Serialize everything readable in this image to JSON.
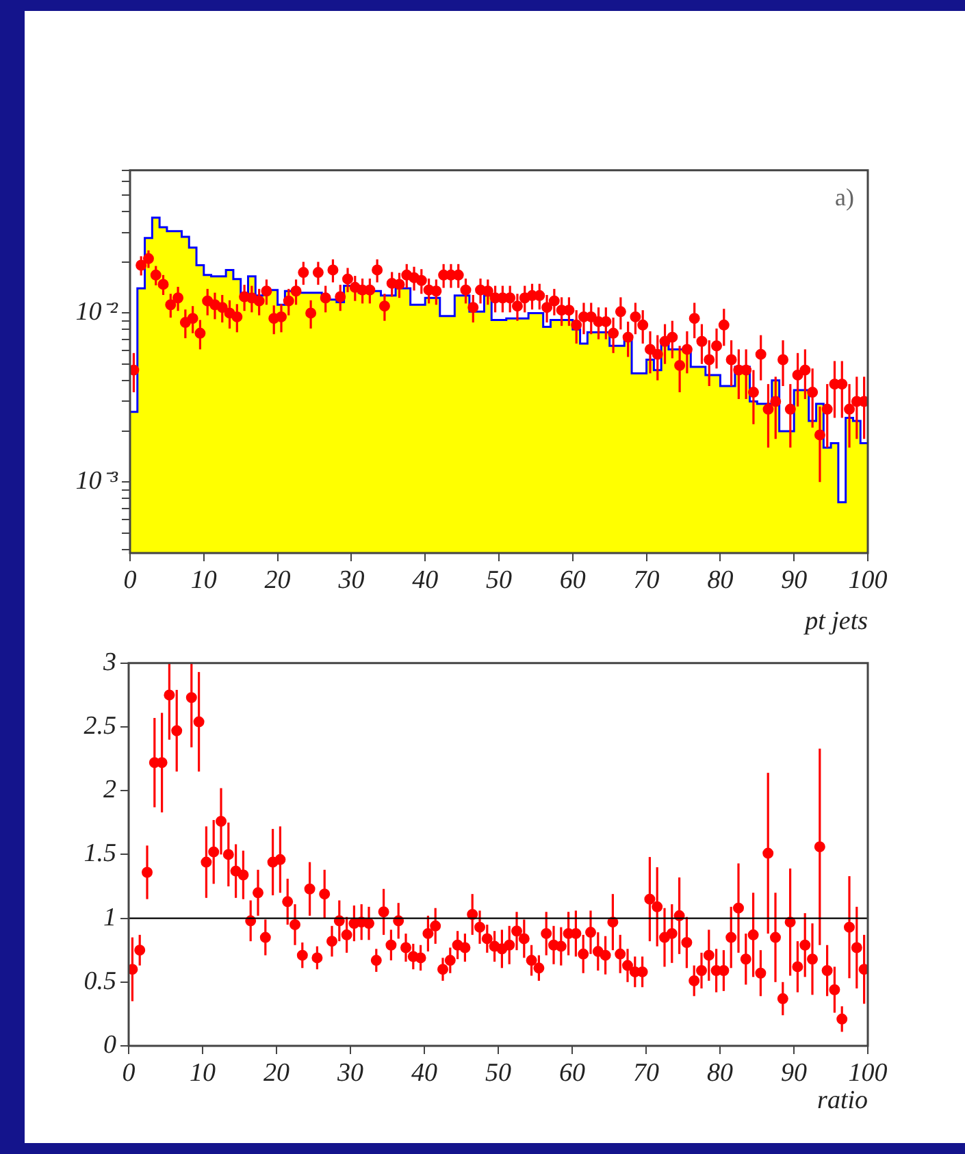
{
  "chart_data": [
    {
      "type": "histogram",
      "xlabel": "pt jets",
      "annotations": [
        "a)"
      ],
      "log": true,
      "xlim": [
        0,
        100
      ],
      "xticks": [
        0,
        10,
        20,
        30,
        40,
        50,
        60,
        70,
        80,
        90,
        100
      ],
      "ylim": [
        0.00038,
        0.07
      ],
      "yticks": [
        {
          "value": 0.0004,
          "label": null
        },
        {
          "value": 0.0005,
          "label": null
        },
        {
          "value": 0.0006,
          "label": null
        },
        {
          "value": 0.0007,
          "label": null
        },
        {
          "value": 0.0008,
          "label": null
        },
        {
          "value": 0.0009,
          "label": null
        },
        {
          "value": 0.001,
          "label": "10⁻³"
        },
        {
          "value": 0.002,
          "label": null
        },
        {
          "value": 0.003,
          "label": null
        },
        {
          "value": 0.004,
          "label": null
        },
        {
          "value": 0.005,
          "label": null
        },
        {
          "value": 0.006,
          "label": null
        },
        {
          "value": 0.007,
          "label": null
        },
        {
          "value": 0.008,
          "label": null
        },
        {
          "value": 0.009,
          "label": null
        },
        {
          "value": 0.01,
          "label": "10⁻²"
        },
        {
          "value": 0.02,
          "label": null
        },
        {
          "value": 0.03,
          "label": null
        },
        {
          "value": 0.04,
          "label": null
        },
        {
          "value": 0.05,
          "label": null
        },
        {
          "value": 0.06,
          "label": null
        },
        {
          "value": 0.07,
          "label": null
        }
      ],
      "series": [
        {
          "type": "histogram",
          "color": "#ffff00",
          "bins": [
            0,
            1,
            2,
            3,
            4,
            5,
            6,
            7,
            8,
            9,
            10,
            11,
            12,
            13,
            14,
            15,
            16,
            17,
            18,
            19,
            20,
            21,
            22,
            23,
            24,
            25,
            26,
            27,
            28,
            29,
            30,
            31,
            32,
            33,
            34,
            35,
            36,
            37,
            38,
            39,
            40,
            41,
            42,
            43,
            44,
            45,
            46,
            47,
            48,
            49,
            50,
            51,
            52,
            53,
            54,
            55,
            56,
            57,
            58,
            59,
            60,
            61,
            62,
            63,
            64,
            65,
            66,
            67,
            68,
            69,
            70,
            71,
            72,
            73,
            74,
            75,
            76,
            77,
            78,
            79,
            80,
            81,
            82,
            83,
            84,
            85,
            86,
            87,
            88,
            89,
            90,
            91,
            92,
            93,
            94,
            95,
            96,
            97,
            98,
            99,
            100
          ],
          "values": [
            0.0026,
            0.014,
            0.0278,
            0.0367,
            0.0322,
            0.0305,
            0.0305,
            0.0283,
            0.0244,
            0.0192,
            0.0168,
            0.0165,
            0.0165,
            0.018,
            0.0159,
            0.0127,
            0.0165,
            0.0127,
            0.0137,
            0.0137,
            0.0112,
            0.0135,
            0.0135,
            0.0132,
            0.0132,
            0.0132,
            0.012,
            0.012,
            0.0116,
            0.0145,
            0.0145,
            0.0132,
            0.0135,
            0.0135,
            0.0127,
            0.0127,
            0.014,
            0.014,
            0.0112,
            0.0112,
            0.0123,
            0.0123,
            0.0096,
            0.0096,
            0.0127,
            0.0127,
            0.0102,
            0.0102,
            0.0127,
            0.0091,
            0.0091,
            0.0093,
            0.0093,
            0.0093,
            0.01,
            0.01,
            0.0083,
            0.0091,
            0.0091,
            0.0091,
            0.008,
            0.0066,
            0.0077,
            0.0077,
            0.0077,
            0.0064,
            0.0064,
            0.0073,
            0.0044,
            0.0044,
            0.0053,
            0.0046,
            0.0069,
            0.0061,
            0.0061,
            0.0061,
            0.0048,
            0.0048,
            0.0043,
            0.0043,
            0.0037,
            0.0037,
            0.0048,
            0.0048,
            0.003,
            0.0029,
            0.0029,
            0.004,
            0.002,
            0.002,
            0.0035,
            0.0035,
            0.0023,
            0.0029,
            0.0016,
            0.0017,
            0.00076,
            0.0024,
            0.0023,
            0.0017
          ]
        },
        {
          "type": "step",
          "color": "#0000ff",
          "marker": "none",
          "x": [
            0,
            1,
            2,
            3,
            4,
            5,
            6,
            7,
            8,
            9,
            10,
            11,
            12,
            13,
            14,
            15,
            16,
            17,
            18,
            19,
            20,
            21,
            22,
            23,
            24,
            25,
            26,
            27,
            28,
            29,
            30,
            31,
            32,
            33,
            34,
            35,
            36,
            37,
            38,
            39,
            40,
            41,
            42,
            43,
            44,
            45,
            46,
            47,
            48,
            49,
            50,
            51,
            52,
            53,
            54,
            55,
            56,
            57,
            58,
            59,
            60,
            61,
            62,
            63,
            64,
            65,
            66,
            67,
            68,
            69,
            70,
            71,
            72,
            73,
            74,
            75,
            76,
            77,
            78,
            79,
            80,
            81,
            82,
            83,
            84,
            85,
            86,
            87,
            88,
            89,
            90,
            91,
            92,
            93,
            94,
            95,
            96,
            97,
            98,
            99,
            100
          ],
          "values": [
            0.0026,
            0.014,
            0.0278,
            0.0367,
            0.0322,
            0.0305,
            0.0305,
            0.0283,
            0.0244,
            0.0192,
            0.0168,
            0.0165,
            0.0165,
            0.018,
            0.0159,
            0.0127,
            0.0165,
            0.0127,
            0.0137,
            0.0137,
            0.0112,
            0.0135,
            0.0135,
            0.0132,
            0.0132,
            0.0132,
            0.012,
            0.012,
            0.0116,
            0.0145,
            0.0145,
            0.0132,
            0.0135,
            0.0135,
            0.0127,
            0.0127,
            0.014,
            0.014,
            0.0112,
            0.0112,
            0.0123,
            0.0123,
            0.0096,
            0.0096,
            0.0127,
            0.0127,
            0.0102,
            0.0102,
            0.0127,
            0.0091,
            0.0091,
            0.0093,
            0.0093,
            0.0093,
            0.01,
            0.01,
            0.0083,
            0.0091,
            0.0091,
            0.0091,
            0.008,
            0.0066,
            0.0077,
            0.0077,
            0.0077,
            0.0064,
            0.0064,
            0.0073,
            0.0044,
            0.0044,
            0.0053,
            0.0046,
            0.0069,
            0.0061,
            0.0061,
            0.0061,
            0.0048,
            0.0048,
            0.0043,
            0.0043,
            0.0037,
            0.0037,
            0.0048,
            0.0048,
            0.003,
            0.0029,
            0.0029,
            0.004,
            0.002,
            0.002,
            0.0035,
            0.0035,
            0.0023,
            0.0029,
            0.0016,
            0.0017,
            0.00076,
            0.0024,
            0.0023,
            0.0017,
            0.0017
          ]
        },
        {
          "type": "scatter",
          "color": "#ff0000",
          "marker": "circle",
          "x": [
            0.5,
            1.5,
            2.5,
            3.5,
            4.5,
            5.5,
            6.5,
            7.5,
            8.5,
            9.5,
            10.5,
            11.5,
            12.5,
            13.5,
            14.5,
            15.5,
            16.5,
            17.5,
            18.5,
            19.5,
            20.5,
            21.5,
            22.5,
            23.5,
            24.5,
            25.5,
            26.5,
            27.5,
            28.5,
            29.5,
            30.5,
            31.5,
            32.5,
            33.5,
            34.5,
            35.5,
            36.5,
            37.5,
            38.5,
            39.5,
            40.5,
            41.5,
            42.5,
            43.5,
            44.5,
            45.5,
            46.5,
            47.5,
            48.5,
            49.5,
            50.5,
            51.5,
            52.5,
            53.5,
            54.5,
            55.5,
            56.5,
            57.5,
            58.5,
            59.5,
            60.5,
            61.5,
            62.5,
            63.5,
            64.5,
            65.5,
            66.5,
            67.5,
            68.5,
            69.5,
            70.5,
            71.5,
            72.5,
            73.5,
            74.5,
            75.5,
            76.5,
            77.5,
            78.5,
            79.5,
            80.5,
            81.5,
            82.5,
            83.5,
            84.5,
            85.5,
            86.5,
            87.5,
            88.5,
            89.5,
            90.5,
            91.5,
            92.5,
            93.5,
            94.5,
            95.5,
            96.5,
            97.5,
            98.5,
            99.5
          ],
          "values": [
            0.0046,
            0.0192,
            0.021,
            0.0168,
            0.0148,
            0.0112,
            0.0123,
            0.0088,
            0.0093,
            0.0076,
            0.0118,
            0.0112,
            0.0108,
            0.01,
            0.0095,
            0.0125,
            0.0123,
            0.0118,
            0.0135,
            0.0093,
            0.0095,
            0.0118,
            0.0135,
            0.0174,
            0.01,
            0.0174,
            0.0123,
            0.018,
            0.0125,
            0.0159,
            0.0142,
            0.0137,
            0.0137,
            0.018,
            0.011,
            0.015,
            0.0148,
            0.0168,
            0.0162,
            0.0156,
            0.0137,
            0.0135,
            0.0168,
            0.0168,
            0.0168,
            0.0137,
            0.0108,
            0.0137,
            0.0135,
            0.0123,
            0.0123,
            0.0123,
            0.011,
            0.0123,
            0.0127,
            0.0127,
            0.0108,
            0.0118,
            0.0104,
            0.0104,
            0.0085,
            0.0095,
            0.0095,
            0.0089,
            0.0089,
            0.0076,
            0.0102,
            0.0072,
            0.0095,
            0.0085,
            0.0061,
            0.0057,
            0.0068,
            0.0072,
            0.0049,
            0.0061,
            0.0093,
            0.0068,
            0.0053,
            0.0064,
            0.0085,
            0.0053,
            0.0046,
            0.0046,
            0.0034,
            0.0057,
            0.0027,
            0.003,
            0.0053,
            0.0027,
            0.0043,
            0.0046,
            0.0034,
            0.0019,
            0.0027,
            0.0038,
            0.0038,
            0.0027,
            0.003,
            0.003
          ],
          "errors": [
            0.0012,
            0.0025,
            0.0025,
            0.0022,
            0.002,
            0.0018,
            0.002,
            0.0017,
            0.0017,
            0.0015,
            0.0021,
            0.002,
            0.002,
            0.0019,
            0.0018,
            0.0022,
            0.0022,
            0.0021,
            0.0023,
            0.0018,
            0.0018,
            0.0021,
            0.0023,
            0.0027,
            0.0019,
            0.0027,
            0.0022,
            0.0028,
            0.0022,
            0.0026,
            0.0024,
            0.0023,
            0.0023,
            0.0028,
            0.002,
            0.0025,
            0.0025,
            0.0027,
            0.0026,
            0.0026,
            0.0023,
            0.0023,
            0.0027,
            0.0027,
            0.0027,
            0.0023,
            0.002,
            0.0023,
            0.0023,
            0.0022,
            0.0022,
            0.0022,
            0.002,
            0.0022,
            0.0022,
            0.0022,
            0.002,
            0.0021,
            0.002,
            0.002,
            0.0019,
            0.002,
            0.002,
            0.0019,
            0.0019,
            0.0018,
            0.0022,
            0.0017,
            0.002,
            0.0019,
            0.0017,
            0.0017,
            0.0018,
            0.0018,
            0.0015,
            0.0017,
            0.0022,
            0.0018,
            0.0016,
            0.0017,
            0.0021,
            0.0016,
            0.0015,
            0.0015,
            0.0012,
            0.0017,
            0.0011,
            0.0012,
            0.0016,
            0.0011,
            0.0015,
            0.0015,
            0.0013,
            0.0009,
            0.0011,
            0.0014,
            0.0014,
            0.0011,
            0.0012,
            0.0012
          ]
        }
      ]
    },
    {
      "type": "scatter",
      "xlabel": "ratio",
      "marker": "circle",
      "color": "#ff0000",
      "xlim": [
        0,
        100
      ],
      "xticks": [
        0,
        10,
        20,
        30,
        40,
        50,
        60,
        70,
        80,
        90,
        100
      ],
      "ylim": [
        0,
        3
      ],
      "yticks": [
        0,
        0.5,
        1,
        1.5,
        2,
        2.5,
        3
      ],
      "ref_lines": [
        {
          "axis": "y",
          "value": 1,
          "color": "#000000"
        }
      ],
      "x": [
        0.5,
        1.5,
        2.5,
        3.5,
        4.5,
        5.5,
        6.5,
        7.5,
        8.5,
        9.5,
        10.5,
        11.5,
        12.5,
        13.5,
        14.5,
        15.5,
        16.5,
        17.5,
        18.5,
        19.5,
        20.5,
        21.5,
        22.5,
        23.5,
        24.5,
        25.5,
        26.5,
        27.5,
        28.5,
        29.5,
        30.5,
        31.5,
        32.5,
        33.5,
        34.5,
        35.5,
        36.5,
        37.5,
        38.5,
        39.5,
        40.5,
        41.5,
        42.5,
        43.5,
        44.5,
        45.5,
        46.5,
        47.5,
        48.5,
        49.5,
        50.5,
        51.5,
        52.5,
        53.5,
        54.5,
        55.5,
        56.5,
        57.5,
        58.5,
        59.5,
        60.5,
        61.5,
        62.5,
        63.5,
        64.5,
        65.5,
        66.5,
        67.5,
        68.5,
        69.5,
        70.5,
        71.5,
        72.5,
        73.5,
        74.5,
        75.5,
        76.5,
        77.5,
        78.5,
        79.5,
        80.5,
        81.5,
        82.5,
        83.5,
        84.5,
        85.5,
        86.5,
        87.5,
        88.5,
        89.5,
        90.5,
        91.5,
        92.5,
        93.5,
        94.5,
        95.5,
        96.5,
        97.5,
        98.5,
        99.5
      ],
      "values": [
        0.6,
        0.75,
        1.36,
        2.22,
        2.22,
        2.75,
        2.47,
        null,
        2.73,
        2.54,
        1.44,
        1.52,
        1.76,
        1.5,
        1.37,
        1.34,
        0.98,
        1.2,
        0.85,
        1.44,
        1.46,
        1.13,
        0.95,
        0.71,
        1.23,
        0.69,
        1.19,
        0.82,
        0.98,
        0.87,
        0.96,
        0.97,
        0.96,
        0.67,
        1.05,
        0.79,
        0.98,
        0.77,
        0.7,
        0.69,
        0.88,
        0.94,
        0.6,
        0.67,
        0.79,
        0.77,
        1.03,
        0.93,
        0.84,
        0.78,
        0.76,
        0.79,
        0.9,
        0.84,
        0.67,
        0.61,
        0.88,
        0.79,
        0.78,
        0.88,
        0.88,
        0.72,
        0.89,
        0.74,
        0.71,
        0.97,
        0.72,
        0.63,
        0.58,
        0.58,
        1.15,
        1.09,
        0.85,
        0.88,
        1.02,
        0.81,
        0.51,
        0.59,
        0.71,
        0.59,
        0.59,
        0.85,
        1.08,
        0.68,
        0.87,
        0.57,
        1.51,
        0.85,
        0.37,
        0.97,
        0.62,
        0.79,
        0.68,
        1.56,
        0.59,
        0.44,
        0.21,
        0.93,
        0.77,
        0.6
      ],
      "errors": [
        0.25,
        0.12,
        0.21,
        0.35,
        0.39,
        [
          2.4,
          3
        ],
        0.32,
        null,
        [
          2.34,
          3
        ],
        0.39,
        0.28,
        0.25,
        0.26,
        0.25,
        0.21,
        0.19,
        0.16,
        0.18,
        0.14,
        0.26,
        0.26,
        0.18,
        0.16,
        0.1,
        0.21,
        0.09,
        0.19,
        0.12,
        0.16,
        0.14,
        0.14,
        0.14,
        0.13,
        0.09,
        0.18,
        0.12,
        0.14,
        0.11,
        0.1,
        0.1,
        0.14,
        0.14,
        0.09,
        0.1,
        0.11,
        0.11,
        0.16,
        0.13,
        0.11,
        0.12,
        0.15,
        0.15,
        0.15,
        0.15,
        0.12,
        0.1,
        0.17,
        0.15,
        0.15,
        0.17,
        0.18,
        0.15,
        0.17,
        0.15,
        0.15,
        0.22,
        0.15,
        0.13,
        0.12,
        0.12,
        0.33,
        0.31,
        0.23,
        0.23,
        0.3,
        0.2,
        0.12,
        0.14,
        0.2,
        0.17,
        0.16,
        0.24,
        0.35,
        0.2,
        0.33,
        0.18,
        0.63,
        0.35,
        0.13,
        0.42,
        0.2,
        0.25,
        0.28,
        0.77,
        0.2,
        0.18,
        0.1,
        0.4,
        0.32,
        0.27
      ]
    }
  ]
}
